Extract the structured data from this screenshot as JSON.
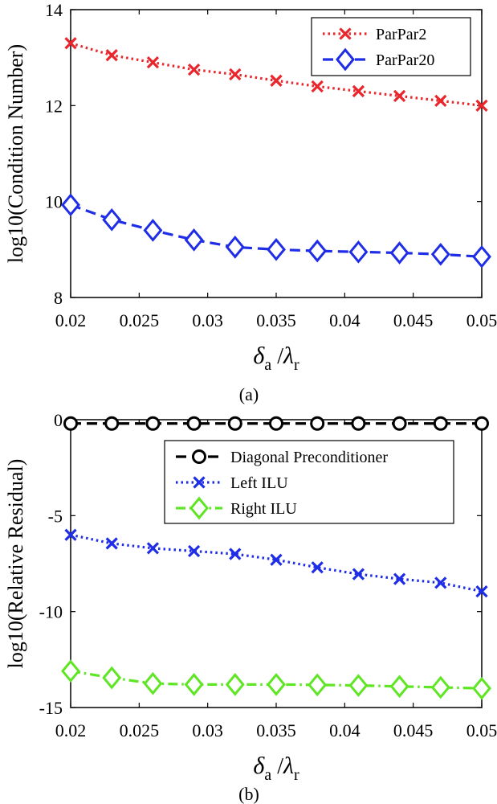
{
  "chart_data": [
    {
      "type": "line",
      "caption": "(a)",
      "xlabel": {
        "main": "δ",
        "sub1": "a",
        "sep": " /",
        "main2": "λ",
        "sub2": "r"
      },
      "ylabel": "log10(Condition Number)",
      "xlim": [
        0.02,
        0.05
      ],
      "ylim": [
        8,
        14
      ],
      "x": [
        0.02,
        0.023,
        0.026,
        0.029,
        0.032,
        0.035,
        0.038,
        0.041,
        0.044,
        0.047,
        0.05
      ],
      "xticks": [
        "0.02",
        "0.025",
        "0.03",
        "0.035",
        "0.04",
        "0.045",
        "0.05"
      ],
      "xtick_values": [
        0.02,
        0.025,
        0.03,
        0.035,
        0.04,
        0.045,
        0.05
      ],
      "yticks": [
        "8",
        "10",
        "12",
        "14"
      ],
      "ytick_values": [
        8,
        10,
        12,
        14
      ],
      "legend_position": "top-right",
      "series": [
        {
          "name": "ParPar2",
          "color": "#e8262b",
          "marker": "x",
          "dash": "dotted",
          "values": [
            13.3,
            13.05,
            12.9,
            12.75,
            12.65,
            12.52,
            12.4,
            12.3,
            12.2,
            12.1,
            12.0
          ]
        },
        {
          "name": "ParPar20",
          "color": "#1f2ee6",
          "marker": "diamond",
          "dash": "dashed",
          "values": [
            9.93,
            9.62,
            9.4,
            9.2,
            9.05,
            9.0,
            8.97,
            8.95,
            8.93,
            8.9,
            8.85
          ]
        }
      ]
    },
    {
      "type": "line",
      "caption": "(b)",
      "xlabel": {
        "main": "δ",
        "sub1": "a",
        "sep": " /",
        "main2": "λ",
        "sub2": "r"
      },
      "ylabel": "log10(Relative Residual)",
      "xlim": [
        0.02,
        0.05
      ],
      "ylim": [
        -15,
        0
      ],
      "x": [
        0.02,
        0.023,
        0.026,
        0.029,
        0.032,
        0.035,
        0.038,
        0.041,
        0.044,
        0.047,
        0.05
      ],
      "xticks": [
        "0.02",
        "0.025",
        "0.03",
        "0.035",
        "0.04",
        "0.045",
        "0.05"
      ],
      "xtick_values": [
        0.02,
        0.025,
        0.03,
        0.035,
        0.04,
        0.045,
        0.05
      ],
      "yticks": [
        "0",
        "-5",
        "-10",
        "-15"
      ],
      "ytick_values": [
        0,
        -5,
        -10,
        -15
      ],
      "legend_position": "top-right",
      "series": [
        {
          "name": "Diagonal Preconditioner",
          "color": "#000000",
          "marker": "circle",
          "dash": "dashed",
          "values": [
            -0.2,
            -0.2,
            -0.2,
            -0.2,
            -0.2,
            -0.2,
            -0.2,
            -0.2,
            -0.2,
            -0.2,
            -0.2
          ]
        },
        {
          "name": "Left ILU",
          "color": "#1f2ee6",
          "marker": "x",
          "dash": "dotted",
          "values": [
            -6.0,
            -6.45,
            -6.7,
            -6.85,
            -7.0,
            -7.3,
            -7.7,
            -8.05,
            -8.3,
            -8.5,
            -8.95
          ]
        },
        {
          "name": "Right ILU",
          "color": "#5ee624",
          "marker": "diamond",
          "dash": "dashdot",
          "values": [
            -13.1,
            -13.45,
            -13.75,
            -13.8,
            -13.8,
            -13.8,
            -13.82,
            -13.85,
            -13.9,
            -13.95,
            -14.0
          ]
        }
      ]
    }
  ]
}
